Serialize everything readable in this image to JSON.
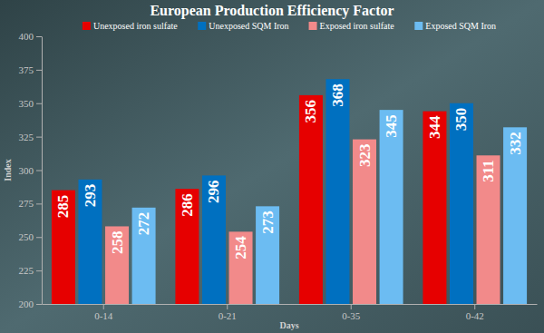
{
  "chart_data": {
    "type": "bar",
    "title": "European Production Efficiency Factor",
    "x_label": "Days",
    "y_label": "Index",
    "categories": [
      "0-14",
      "0-21",
      "0-35",
      "0-42"
    ],
    "series": [
      {
        "name": "Unexposed iron sulfate",
        "color": "#e60000",
        "values": [
          285,
          286,
          356,
          344
        ]
      },
      {
        "name": "Unexposed SQM Iron",
        "color": "#0070c0",
        "values": [
          293,
          296,
          368,
          350
        ]
      },
      {
        "name": "Exposed iron sulfate",
        "color": "#f28a8a",
        "values": [
          258,
          254,
          323,
          311
        ]
      },
      {
        "name": "Exposed SQM Iron",
        "color": "#6cbcf2",
        "values": [
          272,
          273,
          345,
          332
        ]
      }
    ],
    "ylim": [
      200,
      400
    ],
    "yticks": [
      200,
      225,
      250,
      275,
      300,
      325,
      350,
      375,
      400
    ],
    "grid": false,
    "legend": "top",
    "data_labels": true
  }
}
